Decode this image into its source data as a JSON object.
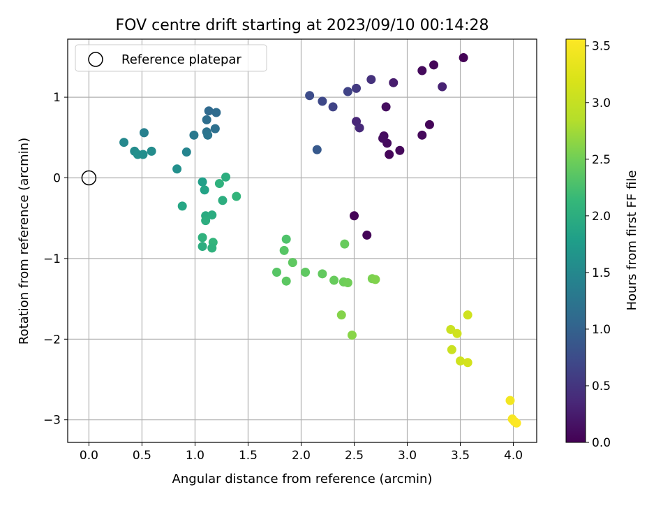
{
  "chart_data": {
    "type": "scatter",
    "title": "FOV centre drift starting at 2023/09/10 00:14:28",
    "xlabel": "Angular distance from reference (arcmin)",
    "ylabel": "Rotation from reference (arcmin)",
    "xlim": [
      -0.2,
      4.22
    ],
    "ylim": [
      -3.28,
      1.72
    ],
    "xticks": [
      0.0,
      0.5,
      1.0,
      1.5,
      2.0,
      2.5,
      3.0,
      3.5,
      4.0
    ],
    "xtick_labels": [
      "0.0",
      "0.5",
      "1.0",
      "1.5",
      "2.0",
      "2.5",
      "3.0",
      "3.5",
      "4.0"
    ],
    "yticks": [
      -3,
      -2,
      -1,
      0,
      1
    ],
    "ytick_labels": [
      "−3",
      "−2",
      "−1",
      "0",
      "1"
    ],
    "grid": true,
    "legend": {
      "position": "top-left",
      "label": "Reference platepar"
    },
    "reference_point": {
      "x": 0,
      "y": 0
    },
    "colorbar": {
      "label": "Hours from first FF file",
      "colormap": "viridis",
      "range": [
        0.0,
        3.56
      ],
      "ticks": [
        0.0,
        0.5,
        1.0,
        1.5,
        2.0,
        2.5,
        3.0,
        3.5
      ],
      "tick_labels": [
        "0.0",
        "0.5",
        "1.0",
        "1.5",
        "2.0",
        "2.5",
        "3.0",
        "3.5"
      ]
    },
    "points": [
      {
        "x": 3.53,
        "y": 1.49,
        "hours": 0.02
      },
      {
        "x": 3.25,
        "y": 1.4,
        "hours": 0.05
      },
      {
        "x": 3.14,
        "y": 1.33,
        "hours": 0.08
      },
      {
        "x": 3.21,
        "y": 0.66,
        "hours": 0.04
      },
      {
        "x": 3.14,
        "y": 0.53,
        "hours": 0.07
      },
      {
        "x": 2.93,
        "y": 0.34,
        "hours": 0.06
      },
      {
        "x": 2.83,
        "y": 0.29,
        "hours": 0.05
      },
      {
        "x": 2.81,
        "y": 0.43,
        "hours": 0.09
      },
      {
        "x": 2.78,
        "y": 0.52,
        "hours": 0.1
      },
      {
        "x": 2.77,
        "y": 0.49,
        "hours": 0.12
      },
      {
        "x": 2.8,
        "y": 0.88,
        "hours": 0.11
      },
      {
        "x": 2.5,
        "y": -0.47,
        "hours": 0.03
      },
      {
        "x": 2.62,
        "y": -0.71,
        "hours": 0.04
      },
      {
        "x": 3.33,
        "y": 1.13,
        "hours": 0.3
      },
      {
        "x": 2.87,
        "y": 1.18,
        "hours": 0.25
      },
      {
        "x": 2.66,
        "y": 1.22,
        "hours": 0.45
      },
      {
        "x": 2.52,
        "y": 1.11,
        "hours": 0.55
      },
      {
        "x": 2.44,
        "y": 1.07,
        "hours": 0.65
      },
      {
        "x": 2.3,
        "y": 0.88,
        "hours": 0.65
      },
      {
        "x": 2.2,
        "y": 0.95,
        "hours": 0.7
      },
      {
        "x": 2.08,
        "y": 1.02,
        "hours": 0.75
      },
      {
        "x": 2.52,
        "y": 0.7,
        "hours": 0.35
      },
      {
        "x": 2.55,
        "y": 0.62,
        "hours": 0.38
      },
      {
        "x": 2.15,
        "y": 0.35,
        "hours": 0.9
      },
      {
        "x": 1.13,
        "y": 0.83,
        "hours": 1.1
      },
      {
        "x": 1.2,
        "y": 0.81,
        "hours": 1.12
      },
      {
        "x": 1.11,
        "y": 0.72,
        "hours": 1.15
      },
      {
        "x": 1.19,
        "y": 0.61,
        "hours": 1.18
      },
      {
        "x": 1.11,
        "y": 0.57,
        "hours": 1.2
      },
      {
        "x": 1.12,
        "y": 0.53,
        "hours": 1.25
      },
      {
        "x": 0.99,
        "y": 0.53,
        "hours": 1.3
      },
      {
        "x": 0.52,
        "y": 0.56,
        "hours": 1.4
      },
      {
        "x": 0.33,
        "y": 0.44,
        "hours": 1.5
      },
      {
        "x": 0.43,
        "y": 0.33,
        "hours": 1.55
      },
      {
        "x": 0.46,
        "y": 0.29,
        "hours": 1.6
      },
      {
        "x": 0.51,
        "y": 0.29,
        "hours": 1.58
      },
      {
        "x": 0.59,
        "y": 0.33,
        "hours": 1.55
      },
      {
        "x": 0.92,
        "y": 0.32,
        "hours": 1.45
      },
      {
        "x": 0.83,
        "y": 0.11,
        "hours": 1.6
      },
      {
        "x": 1.07,
        "y": -0.05,
        "hours": 1.8
      },
      {
        "x": 1.09,
        "y": -0.15,
        "hours": 1.85
      },
      {
        "x": 1.29,
        "y": 0.01,
        "hours": 2.0
      },
      {
        "x": 1.23,
        "y": -0.07,
        "hours": 2.05
      },
      {
        "x": 1.39,
        "y": -0.23,
        "hours": 2.1
      },
      {
        "x": 1.26,
        "y": -0.28,
        "hours": 2.0
      },
      {
        "x": 0.88,
        "y": -0.35,
        "hours": 1.9
      },
      {
        "x": 1.1,
        "y": -0.47,
        "hours": 1.95
      },
      {
        "x": 1.16,
        "y": -0.46,
        "hours": 1.98
      },
      {
        "x": 1.1,
        "y": -0.53,
        "hours": 2.0
      },
      {
        "x": 1.07,
        "y": -0.74,
        "hours": 2.05
      },
      {
        "x": 1.17,
        "y": -0.8,
        "hours": 2.1
      },
      {
        "x": 1.07,
        "y": -0.85,
        "hours": 2.0
      },
      {
        "x": 1.16,
        "y": -0.87,
        "hours": 2.05
      },
      {
        "x": 1.86,
        "y": -0.76,
        "hours": 2.3
      },
      {
        "x": 1.84,
        "y": -0.9,
        "hours": 2.35
      },
      {
        "x": 1.92,
        "y": -1.05,
        "hours": 2.4
      },
      {
        "x": 2.41,
        "y": -0.82,
        "hours": 2.45
      },
      {
        "x": 1.77,
        "y": -1.17,
        "hours": 2.35
      },
      {
        "x": 1.86,
        "y": -1.28,
        "hours": 2.38
      },
      {
        "x": 2.04,
        "y": -1.17,
        "hours": 2.4
      },
      {
        "x": 2.2,
        "y": -1.19,
        "hours": 2.42
      },
      {
        "x": 2.31,
        "y": -1.27,
        "hours": 2.45
      },
      {
        "x": 2.4,
        "y": -1.29,
        "hours": 2.48
      },
      {
        "x": 2.44,
        "y": -1.3,
        "hours": 2.5
      },
      {
        "x": 2.67,
        "y": -1.25,
        "hours": 2.55
      },
      {
        "x": 2.7,
        "y": -1.26,
        "hours": 2.58
      },
      {
        "x": 2.38,
        "y": -1.7,
        "hours": 2.6
      },
      {
        "x": 2.48,
        "y": -1.95,
        "hours": 2.62
      },
      {
        "x": 3.57,
        "y": -1.7,
        "hours": 3.1
      },
      {
        "x": 3.41,
        "y": -1.88,
        "hours": 3.05
      },
      {
        "x": 3.47,
        "y": -1.93,
        "hours": 3.1
      },
      {
        "x": 3.42,
        "y": -2.13,
        "hours": 3.05
      },
      {
        "x": 3.5,
        "y": -2.27,
        "hours": 3.1
      },
      {
        "x": 3.57,
        "y": -2.29,
        "hours": 3.15
      },
      {
        "x": 3.97,
        "y": -2.76,
        "hours": 3.45
      },
      {
        "x": 3.99,
        "y": -2.99,
        "hours": 3.5
      },
      {
        "x": 4.01,
        "y": -3.02,
        "hours": 3.52
      },
      {
        "x": 4.03,
        "y": -3.04,
        "hours": 3.55
      }
    ]
  }
}
